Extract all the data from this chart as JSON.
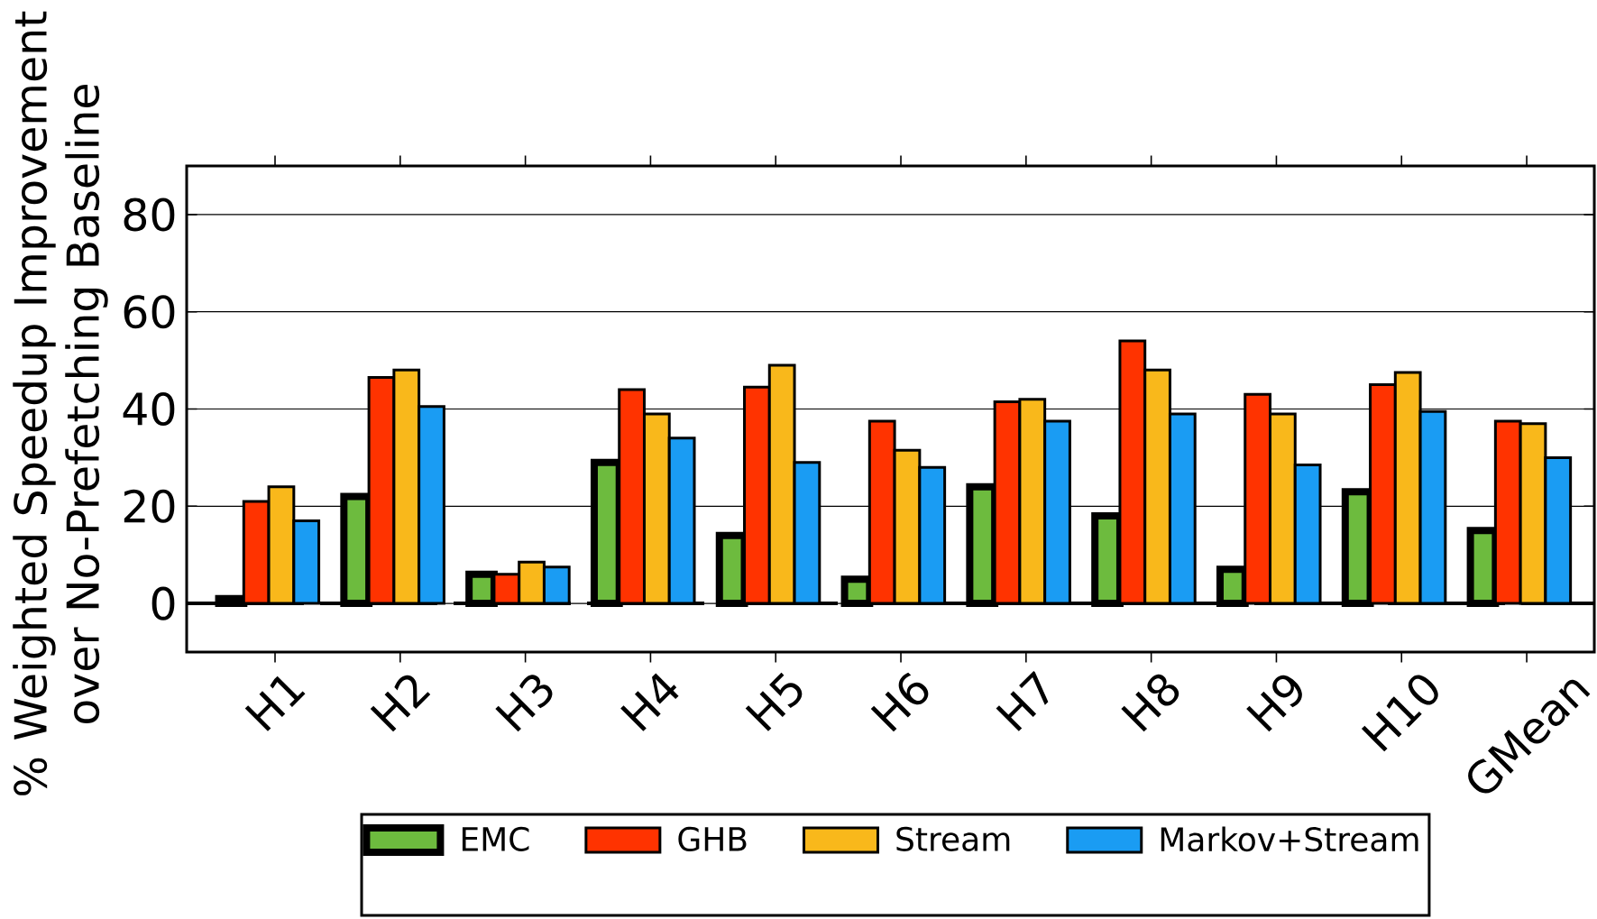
{
  "chart_data": {
    "type": "bar",
    "ylabel": "% Weighted Speedup Improvement over No-Prefetching Baseline",
    "categories": [
      "H1",
      "H2",
      "H3",
      "H4",
      "H5",
      "H6",
      "H7",
      "H8",
      "H9",
      "H10",
      "GMean"
    ],
    "series": [
      {
        "name": "EMC",
        "color": "#6dbb3e",
        "values": [
          1,
          22,
          6,
          29,
          14,
          5,
          24,
          18,
          7,
          23,
          15
        ]
      },
      {
        "name": "GHB",
        "color": "#ff3300",
        "values": [
          21,
          46.5,
          6,
          44,
          44.5,
          37.5,
          41.5,
          54,
          43,
          45,
          37.5
        ]
      },
      {
        "name": "Stream",
        "color": "#f9b81b",
        "values": [
          24,
          48,
          8.5,
          39,
          49,
          31.5,
          42,
          48,
          39,
          47.5,
          37
        ]
      },
      {
        "name": "Markov+Stream",
        "color": "#1a9cf3",
        "values": [
          17,
          40.5,
          7.5,
          34,
          29,
          28,
          37.5,
          39,
          28.5,
          39.5,
          30
        ]
      }
    ],
    "ylim": [
      -10,
      90
    ],
    "yticks": [
      0,
      20,
      40,
      60,
      80
    ],
    "grid": "y",
    "legend": "bottom",
    "ref_lines": [
      {
        "axis": "y",
        "value": 0,
        "line_style": "dashed"
      }
    ]
  }
}
